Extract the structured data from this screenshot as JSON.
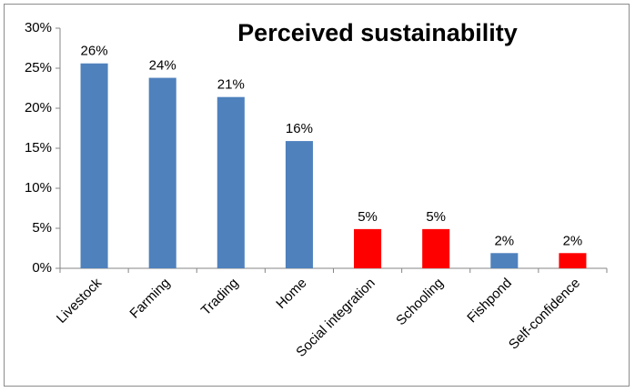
{
  "chart_data": {
    "type": "bar",
    "title": "Perceived sustainability",
    "xlabel": "",
    "ylabel": "",
    "categories": [
      "Livestock",
      "Farming",
      "Trading",
      "Home",
      "Social integration",
      "Schooling",
      "Fishpond",
      "Self-confidence"
    ],
    "values": [
      0.256,
      0.238,
      0.214,
      0.159,
      0.049,
      0.049,
      0.019,
      0.019
    ],
    "data_labels": [
      "26%",
      "24%",
      "21%",
      "16%",
      "5%",
      "5%",
      "2%",
      "2%"
    ],
    "colors": [
      "#4f81bd",
      "#4f81bd",
      "#4f81bd",
      "#4f81bd",
      "#ff0000",
      "#ff0000",
      "#4f81bd",
      "#ff0000"
    ],
    "ylim": [
      0,
      0.3
    ],
    "yticks": [
      0,
      0.05,
      0.1,
      0.15,
      0.2,
      0.25,
      0.3
    ],
    "ytick_labels": [
      "0%",
      "5%",
      "10%",
      "15%",
      "20%",
      "25%",
      "30%"
    ],
    "grid": false,
    "legend": "none"
  }
}
